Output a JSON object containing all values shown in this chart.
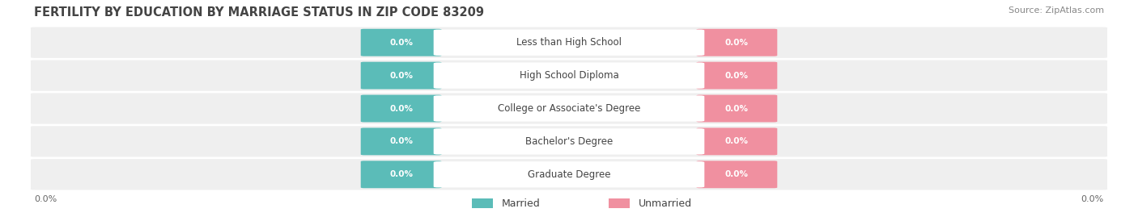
{
  "title": "FERTILITY BY EDUCATION BY MARRIAGE STATUS IN ZIP CODE 83209",
  "source": "Source: ZipAtlas.com",
  "categories": [
    "Less than High School",
    "High School Diploma",
    "College or Associate's Degree",
    "Bachelor's Degree",
    "Graduate Degree"
  ],
  "married_values": [
    0.0,
    0.0,
    0.0,
    0.0,
    0.0
  ],
  "unmarried_values": [
    0.0,
    0.0,
    0.0,
    0.0,
    0.0
  ],
  "married_color": "#5bbcb8",
  "unmarried_color": "#f090a0",
  "row_bg_color": "#efefef",
  "label_color": "#444444",
  "title_color": "#444444",
  "x_tick_left": "0.0%",
  "x_tick_right": "0.0%",
  "background_color": "#ffffff",
  "legend_married": "Married",
  "legend_unmarried": "Unmarried",
  "value_text": "0.0%"
}
